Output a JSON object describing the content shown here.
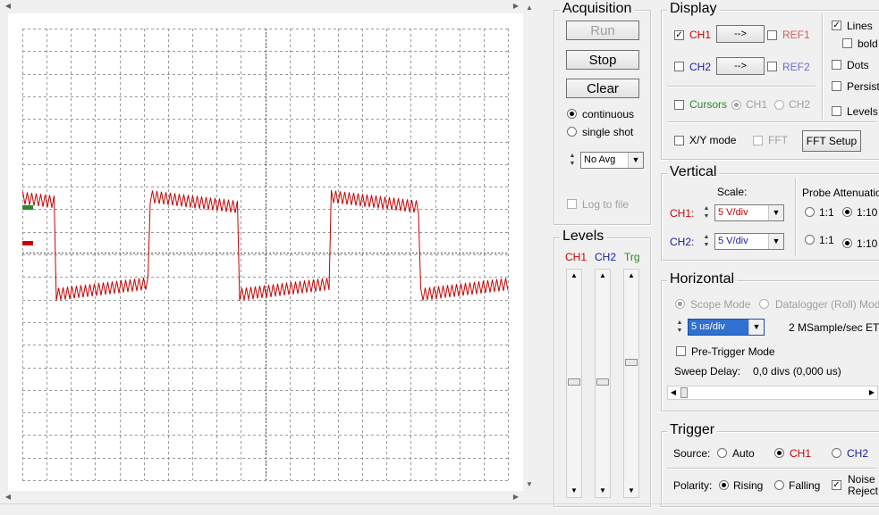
{
  "colors": {
    "ch1": "#cc0000",
    "ch2": "#1a1aa0",
    "trg": "#2a8a2a",
    "cursor_green": "#2a8a2a",
    "ref": "#d06060",
    "ref2": "#6a6ad0"
  },
  "acquisition": {
    "title": "Acquisition",
    "run_label": "Run",
    "stop_label": "Stop",
    "clear_label": "Clear",
    "continuous_label": "continuous",
    "single_shot_label": "single shot",
    "mode": "continuous",
    "avg_value": "No Avg",
    "log_label": "Log to file"
  },
  "display": {
    "title": "Display",
    "ch1_label": "CH1",
    "ch2_label": "CH2",
    "arrow_label": "-->",
    "ref1_label": "REF1",
    "ref2_label": "REF2",
    "cursors_label": "Cursors",
    "cursor_ch1_label": "CH1",
    "cursor_ch2_label": "CH2",
    "xy_label": "X/Y mode",
    "fft_label": "FFT",
    "fft_setup_label": "FFT Setup",
    "lines_label": "Lines",
    "bold_label": "bold",
    "dots_label": "Dots",
    "persist_label": "Persist",
    "levels_label": "Levels",
    "ch1_checked": true,
    "lines_checked": true
  },
  "vertical": {
    "title": "Vertical",
    "scale_label": "Scale:",
    "ch1_label": "CH1:",
    "ch2_label": "CH2:",
    "ch1_scale": "5 V/div",
    "ch2_scale": "5 V/div",
    "probe_title": "Probe Attenuation",
    "opt_1": "1:1",
    "opt_10": "1:10"
  },
  "horizontal": {
    "title": "Horizontal",
    "scope_mode_label": "Scope Mode",
    "datalogger_label": "Datalogger (Roll) Mode",
    "timebase": "5 us/div",
    "sample_rate": "2 MSample/sec ET",
    "pretrigger_label": "Pre-Trigger Mode",
    "sweep_label": "Sweep Delay:",
    "sweep_value": "0,0 divs (0,000 us)"
  },
  "levels": {
    "title": "Levels",
    "ch1_label": "CH1",
    "ch2_label": "CH2",
    "trg_label": "Trg"
  },
  "trigger": {
    "title": "Trigger",
    "source_label": "Source:",
    "auto_label": "Auto",
    "ch1_label": "CH1",
    "ch2_label": "CH2",
    "polarity_label": "Polarity:",
    "rising_label": "Rising",
    "falling_label": "Falling",
    "noise_label_1": "Noise",
    "noise_label_2": "Reject"
  }
}
